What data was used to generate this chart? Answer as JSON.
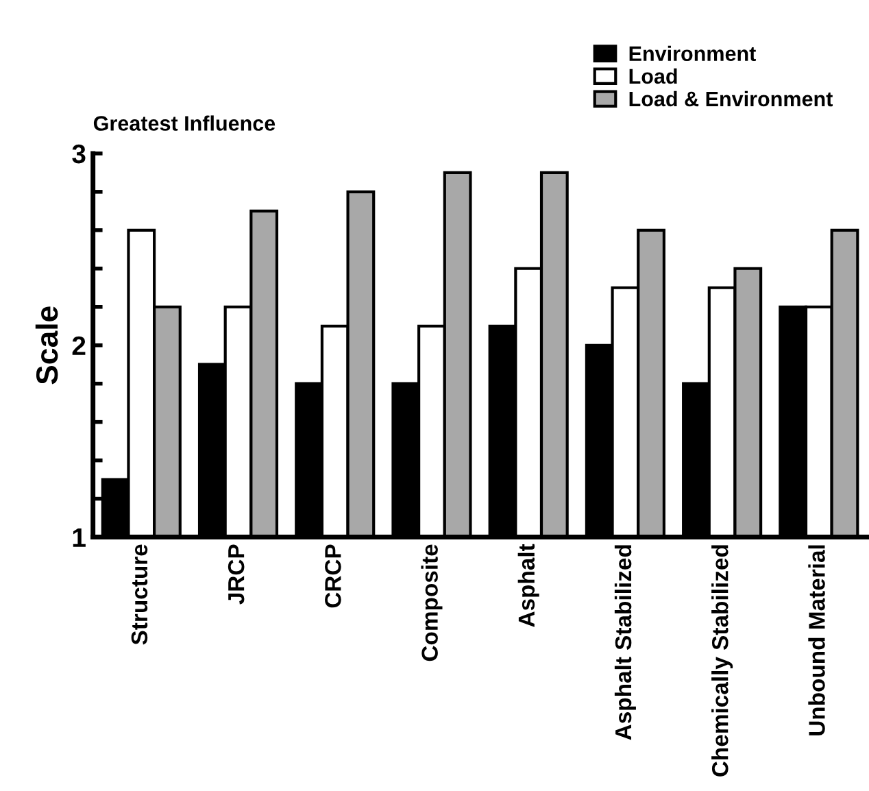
{
  "chart_data": {
    "type": "bar",
    "title": "Greatest Influence",
    "ylabel": "Scale",
    "categories": [
      "Structure",
      "JRCP",
      "CRCP",
      "Composite",
      "Asphalt",
      "Asphalt Stabilized",
      "Chemically Stabilized",
      "Unbound Material"
    ],
    "series": [
      {
        "name": "Environment",
        "color": "#000000",
        "values": [
          1.3,
          1.9,
          1.8,
          1.8,
          2.1,
          2.0,
          1.8,
          2.2
        ]
      },
      {
        "name": "Load",
        "color": "#ffffff",
        "values": [
          2.6,
          2.2,
          2.1,
          2.1,
          2.4,
          2.3,
          2.3,
          2.2
        ]
      },
      {
        "name": "Load & Environment",
        "color": "#a8a8a8",
        "values": [
          2.2,
          2.7,
          2.8,
          2.9,
          2.9,
          2.6,
          2.4,
          2.6
        ]
      }
    ],
    "ylim": [
      1,
      3
    ],
    "yticks": [
      1,
      {
        "value": 1.2,
        "label": null
      },
      {
        "value": 1.4,
        "label": null
      },
      {
        "value": 1.6,
        "label": null
      },
      {
        "value": 1.8,
        "label": null
      },
      2,
      {
        "value": 2.2,
        "label": null
      },
      {
        "value": 2.4,
        "label": null
      },
      {
        "value": 2.6,
        "label": null
      },
      {
        "value": 2.8,
        "label": null
      },
      3
    ],
    "grid": false,
    "legend": "top right"
  }
}
